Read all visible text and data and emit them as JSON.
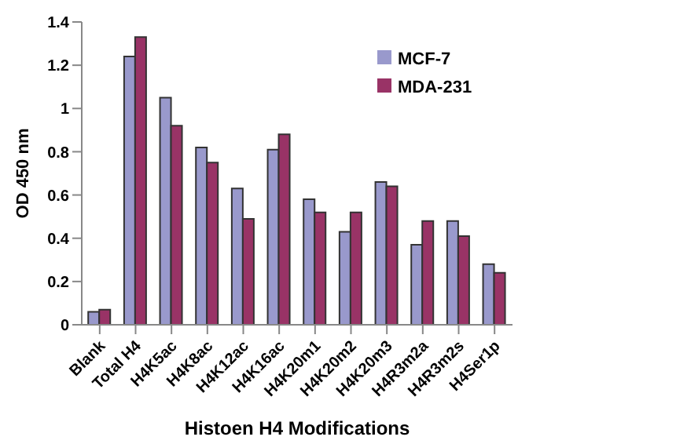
{
  "chart_data": {
    "type": "bar",
    "xlabel": "Histoen H4 Modifications",
    "ylabel": "OD 450 nm",
    "categories": [
      "Blank",
      "Total H4",
      "H4K5ac",
      "H4K8ac",
      "H4K12ac",
      "H4K16ac",
      "H4K20m1",
      "H4K20m2",
      "H4K20m3",
      "H4R3m2a",
      "H4R3m2s",
      "H4Ser1p"
    ],
    "series": [
      {
        "name": "MCF-7",
        "color": "#9999cc",
        "values": [
          0.06,
          1.24,
          1.05,
          0.82,
          0.63,
          0.81,
          0.58,
          0.43,
          0.66,
          0.37,
          0.48,
          0.28
        ]
      },
      {
        "name": "MDA-231",
        "color": "#993366",
        "values": [
          0.07,
          1.33,
          0.92,
          0.75,
          0.49,
          0.88,
          0.52,
          0.52,
          0.64,
          0.48,
          0.41,
          0.24
        ]
      }
    ],
    "ylim": [
      0,
      1.4
    ],
    "yticks": [
      0,
      0.2,
      0.4,
      0.6,
      0.8,
      1,
      1.2,
      1.4
    ],
    "grid": false,
    "legend": "top right"
  }
}
